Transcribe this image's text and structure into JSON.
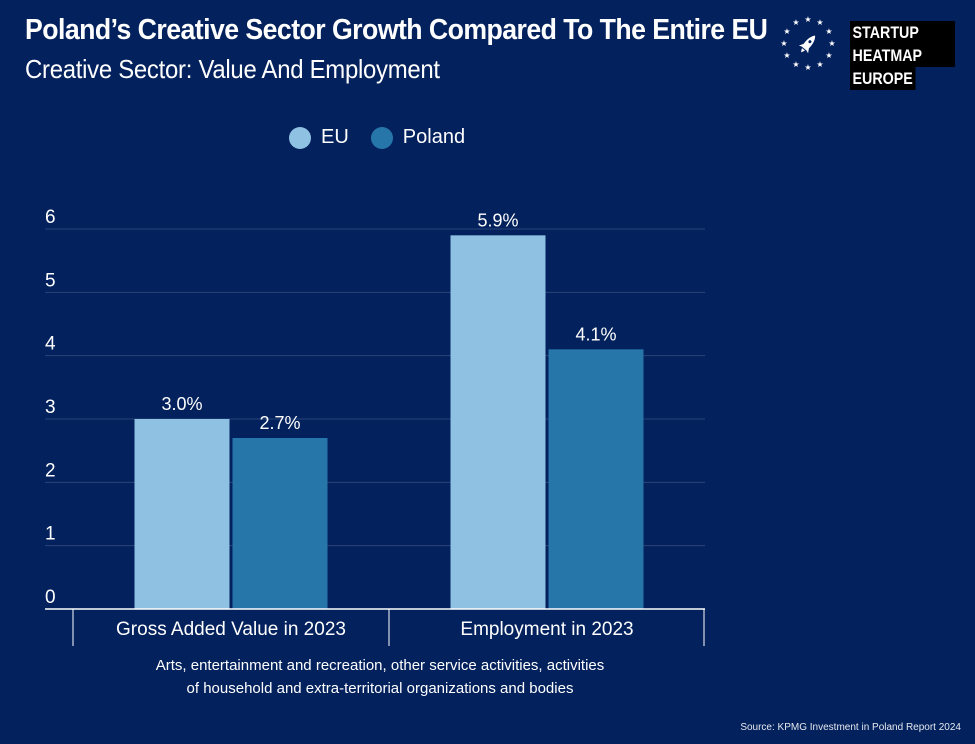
{
  "header": {
    "title": "Poland’s Creative Sector Growth Compared To The Entire EU",
    "subtitle": "Creative Sector: Value And Employment"
  },
  "brand": {
    "line1": "STARTUP HEATMAP",
    "line2": "EUROPE",
    "icon": "rocket-stars-icon"
  },
  "colors": {
    "background": "#03215c",
    "eu": "#8fc1e3",
    "poland": "#2776aa",
    "gridline": "#2a4478",
    "axis": "#ffffff"
  },
  "chart_data": {
    "type": "bar",
    "title": "Poland’s Creative Sector Growth Compared To The Entire EU",
    "subtitle": "Creative Sector: Value And Employment",
    "categories": [
      "Gross Added Value in 2023",
      "Employment in 2023"
    ],
    "series": [
      {
        "name": "EU",
        "values": [
          3.0,
          5.9
        ],
        "labels": [
          "3.0%",
          "5.9%"
        ],
        "color": "#8fc1e3"
      },
      {
        "name": "Poland",
        "values": [
          2.7,
          4.1
        ],
        "labels": [
          "2.7%",
          "4.1%"
        ],
        "color": "#2776aa"
      }
    ],
    "ylim": [
      0,
      6
    ],
    "yticks": [
      "0",
      "1",
      "2",
      "3",
      "4",
      "5",
      "6"
    ],
    "grid": true,
    "legend": "top-center"
  },
  "footnote": {
    "line1": "Arts, entertainment and recreation, other service activities, activities",
    "line2": "of household and extra-territorial organizations and bodies"
  },
  "source": "Source: KPMG Investment in Poland Report 2024"
}
